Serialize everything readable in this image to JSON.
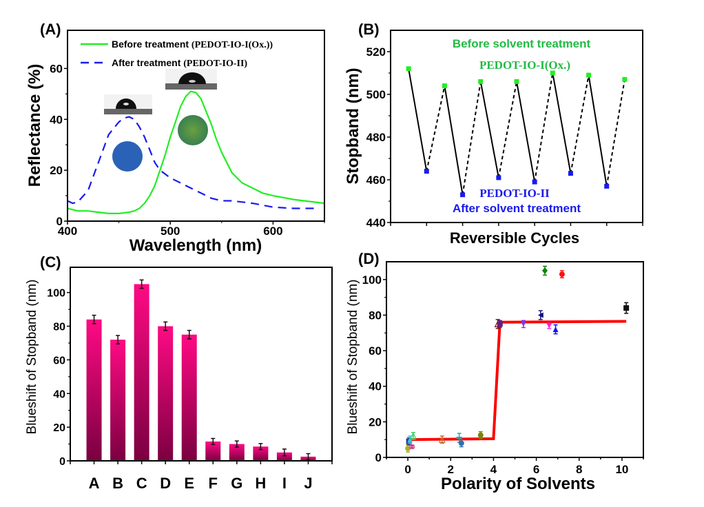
{
  "chart_data": [
    {
      "panel": "(A)",
      "type": "line",
      "xlabel": "Wavelength (nm)",
      "ylabel": "Reflectance (%)",
      "xlim": [
        400,
        650
      ],
      "ylim": [
        0,
        75
      ],
      "xticks": [
        400,
        500,
        600
      ],
      "yticks": [
        0,
        20,
        40,
        60
      ],
      "legend_position": "top",
      "series": [
        {
          "name": "Before treatment",
          "name_suffix": "(PEDOT-IO-I(Ox.))",
          "style": "solid",
          "color": "#22ee22",
          "x": [
            400,
            410,
            420,
            430,
            440,
            450,
            460,
            465,
            470,
            475,
            480,
            485,
            490,
            495,
            500,
            505,
            510,
            515,
            520,
            525,
            530,
            535,
            540,
            545,
            550,
            560,
            570,
            580,
            590,
            600,
            620,
            650
          ],
          "y": [
            5,
            4,
            4,
            3.5,
            3,
            3,
            3.5,
            4,
            5,
            7,
            10,
            14,
            20,
            26,
            33,
            39,
            45,
            49,
            51,
            50.5,
            48,
            43,
            38,
            32,
            27,
            19,
            15,
            13,
            11,
            10,
            8.5,
            7
          ]
        },
        {
          "name": "After treatment",
          "name_suffix": "(PEDOT-IO-II)",
          "style": "dashed",
          "color": "#1a1aee",
          "x": [
            400,
            405,
            410,
            420,
            430,
            440,
            450,
            455,
            460,
            465,
            470,
            475,
            480,
            485,
            490,
            500,
            510,
            520,
            530,
            540,
            550,
            560,
            580,
            600,
            620,
            645
          ],
          "y": [
            8,
            7,
            7.5,
            12,
            23,
            34,
            39,
            40.5,
            41,
            40,
            37,
            33,
            28,
            23,
            20,
            17,
            15,
            13,
            11,
            9,
            8,
            8,
            7,
            5.5,
            5,
            5
          ]
        }
      ],
      "insets": [
        "water-droplet-contact-angle",
        "blue-film-photo",
        "water-droplet-contact-angle",
        "green-film-photo"
      ]
    },
    {
      "panel": "(B)",
      "type": "line",
      "xlabel": "Reversible Cycles",
      "ylabel": "Stopband (nm)",
      "ylim": [
        440,
        530
      ],
      "yticks": [
        440,
        460,
        480,
        500,
        520
      ],
      "x_tick_count": 8,
      "values": [
        512,
        464,
        504,
        453,
        506,
        461,
        506,
        459,
        510,
        463,
        509,
        457,
        507
      ],
      "states": [
        "before",
        "after",
        "before",
        "after",
        "before",
        "after",
        "before",
        "after",
        "before",
        "after",
        "before",
        "after",
        "before"
      ],
      "before_color": "#22ee22",
      "after_color": "#1a1aee",
      "annotations": {
        "before_title": "Before solvent treatment",
        "before_sample": "PEDOT-IO-I(Ox.)",
        "after_sample": "PEDOT-IO-II",
        "after_title": "After solvent treatment",
        "before_text_color": "#22bb44",
        "after_text_color": "#1a1aee"
      }
    },
    {
      "panel": "(C)",
      "type": "bar",
      "xlabel": "",
      "ylabel": "Blueshift of Stopband (nm)",
      "categories": [
        "A",
        "B",
        "C",
        "D",
        "E",
        "F",
        "G",
        "H",
        "I",
        "J"
      ],
      "values": [
        84,
        72,
        105,
        80,
        75,
        11.5,
        10,
        8.5,
        5,
        2.5
      ],
      "errors": [
        2.5,
        2.5,
        2.5,
        2.5,
        2.5,
        1.8,
        1.8,
        1.8,
        2,
        1.8
      ],
      "ylim": [
        0,
        115
      ],
      "yticks": [
        0,
        20,
        40,
        60,
        80,
        100
      ],
      "bar_color_top": "#ff0a84",
      "bar_color_bottom": "#7a0040"
    },
    {
      "panel": "(D)",
      "type": "scatter",
      "xlabel": "Polarity of Solvents",
      "ylabel": "Blueshift of Stopband (nm)",
      "xlim": [
        -1,
        11
      ],
      "ylim": [
        0,
        110
      ],
      "xticks": [
        0,
        2,
        4,
        6,
        8,
        10
      ],
      "yticks": [
        0,
        20,
        40,
        60,
        80,
        100
      ],
      "points": [
        {
          "x": 0.0,
          "y": 5,
          "err": 2,
          "color": "#a8b030",
          "marker": "circle"
        },
        {
          "x": 0.05,
          "y": 9,
          "err": 2,
          "color": "#3030a0",
          "marker": "square"
        },
        {
          "x": 0.1,
          "y": 10,
          "err": 2,
          "color": "#30c8d8",
          "marker": "triangle"
        },
        {
          "x": 0.2,
          "y": 6,
          "err": 1,
          "color": "#d03080",
          "marker": "dash"
        },
        {
          "x": 0.25,
          "y": 12,
          "err": 2,
          "color": "#30d060",
          "marker": "triangle-open"
        },
        {
          "x": 1.6,
          "y": 10,
          "err": 2,
          "color": "#c07030",
          "marker": "triangle-open"
        },
        {
          "x": 2.4,
          "y": 11,
          "err": 2.5,
          "color": "#30a0a0",
          "marker": "dash"
        },
        {
          "x": 2.5,
          "y": 8,
          "err": 2,
          "color": "#3070b0",
          "marker": "circle"
        },
        {
          "x": 3.4,
          "y": 12.5,
          "err": 2,
          "color": "#808010",
          "marker": "circle"
        },
        {
          "x": 4.2,
          "y": 75,
          "err": 2.5,
          "color": "#801010",
          "marker": "triangle-open"
        },
        {
          "x": 4.3,
          "y": 75,
          "err": 2,
          "color": "#602080",
          "marker": "square"
        },
        {
          "x": 5.4,
          "y": 75,
          "err": 2,
          "color": "#9030e0",
          "marker": "triangle-down"
        },
        {
          "x": 6.2,
          "y": 80,
          "err": 2.5,
          "color": "#101080",
          "marker": "triangle-left"
        },
        {
          "x": 6.4,
          "y": 105,
          "err": 2.5,
          "color": "#108010",
          "marker": "diamond"
        },
        {
          "x": 6.6,
          "y": 74,
          "err": 1.5,
          "color": "#ff20e0",
          "marker": "triangle-down"
        },
        {
          "x": 6.9,
          "y": 72,
          "err": 2.5,
          "color": "#1010ff",
          "marker": "triangle"
        },
        {
          "x": 7.2,
          "y": 103,
          "err": 2,
          "color": "#ff1010",
          "marker": "circle"
        },
        {
          "x": 10.2,
          "y": 84,
          "err": 3,
          "color": "#101010",
          "marker": "square"
        }
      ],
      "fit_line": {
        "x": [
          0.1,
          4.0,
          4.3,
          10.2
        ],
        "y": [
          10,
          10.5,
          76,
          76.5
        ],
        "color": "#ff0000"
      }
    }
  ]
}
